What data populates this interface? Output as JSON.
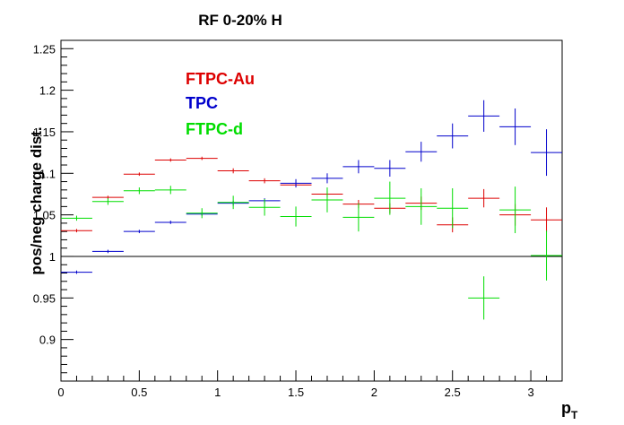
{
  "chart_data": {
    "type": "scatter",
    "title": "RF 0-20% H",
    "xlabel": "p",
    "xlabel_sub": "T",
    "ylabel": "pos/neg charge dist.",
    "xlim": [
      0,
      3.2
    ],
    "ylim": [
      0.85,
      1.26
    ],
    "x_ticks": [
      0,
      0.5,
      1,
      1.5,
      2,
      2.5,
      3
    ],
    "x_tick_labels": [
      "0",
      "0.5",
      "1",
      "1.5",
      "2",
      "2.5",
      "3"
    ],
    "y_ticks": [
      0.9,
      0.95,
      1,
      1.05,
      1.1,
      1.15,
      1.2,
      1.25
    ],
    "y_tick_labels": [
      "0.9",
      "0.95",
      "1",
      "1.05",
      "1.1",
      "1.15",
      "1.2",
      "1.25"
    ],
    "reference_line": 1.0,
    "legend_position": "top-left",
    "series": [
      {
        "name": "FTPC-Au",
        "color": "#dd0000",
        "points": [
          {
            "x": 0.1,
            "y": 1.031,
            "xerr": 0.1,
            "yerr": 0.002
          },
          {
            "x": 0.3,
            "y": 1.071,
            "xerr": 0.1,
            "yerr": 0.002
          },
          {
            "x": 0.5,
            "y": 1.099,
            "xerr": 0.1,
            "yerr": 0.002
          },
          {
            "x": 0.7,
            "y": 1.116,
            "xerr": 0.1,
            "yerr": 0.002
          },
          {
            "x": 0.9,
            "y": 1.118,
            "xerr": 0.1,
            "yerr": 0.002
          },
          {
            "x": 1.1,
            "y": 1.103,
            "xerr": 0.1,
            "yerr": 0.003
          },
          {
            "x": 1.3,
            "y": 1.091,
            "xerr": 0.1,
            "yerr": 0.003
          },
          {
            "x": 1.5,
            "y": 1.086,
            "xerr": 0.1,
            "yerr": 0.003
          },
          {
            "x": 1.7,
            "y": 1.075,
            "xerr": 0.1,
            "yerr": 0.004
          },
          {
            "x": 1.9,
            "y": 1.063,
            "xerr": 0.1,
            "yerr": 0.005
          },
          {
            "x": 2.1,
            "y": 1.058,
            "xerr": 0.1,
            "yerr": 0.006
          },
          {
            "x": 2.3,
            "y": 1.064,
            "xerr": 0.1,
            "yerr": 0.008
          },
          {
            "x": 2.5,
            "y": 1.038,
            "xerr": 0.1,
            "yerr": 0.009
          },
          {
            "x": 2.7,
            "y": 1.07,
            "xerr": 0.1,
            "yerr": 0.011
          },
          {
            "x": 2.9,
            "y": 1.05,
            "xerr": 0.1,
            "yerr": 0.013
          },
          {
            "x": 3.1,
            "y": 1.044,
            "xerr": 0.1,
            "yerr": 0.015
          }
        ]
      },
      {
        "name": "TPC",
        "color": "#0000cc",
        "points": [
          {
            "x": 0.1,
            "y": 0.981,
            "xerr": 0.1,
            "yerr": 0.002
          },
          {
            "x": 0.3,
            "y": 1.006,
            "xerr": 0.1,
            "yerr": 0.002
          },
          {
            "x": 0.5,
            "y": 1.03,
            "xerr": 0.1,
            "yerr": 0.002
          },
          {
            "x": 0.7,
            "y": 1.041,
            "xerr": 0.1,
            "yerr": 0.002
          },
          {
            "x": 0.9,
            "y": 1.051,
            "xerr": 0.1,
            "yerr": 0.002
          },
          {
            "x": 1.1,
            "y": 1.064,
            "xerr": 0.1,
            "yerr": 0.003
          },
          {
            "x": 1.3,
            "y": 1.067,
            "xerr": 0.1,
            "yerr": 0.003
          },
          {
            "x": 1.5,
            "y": 1.088,
            "xerr": 0.1,
            "yerr": 0.005
          },
          {
            "x": 1.7,
            "y": 1.094,
            "xerr": 0.1,
            "yerr": 0.006
          },
          {
            "x": 1.9,
            "y": 1.108,
            "xerr": 0.1,
            "yerr": 0.008
          },
          {
            "x": 2.1,
            "y": 1.106,
            "xerr": 0.1,
            "yerr": 0.01
          },
          {
            "x": 2.3,
            "y": 1.126,
            "xerr": 0.1,
            "yerr": 0.012
          },
          {
            "x": 2.5,
            "y": 1.145,
            "xerr": 0.1,
            "yerr": 0.015
          },
          {
            "x": 2.7,
            "y": 1.169,
            "xerr": 0.1,
            "yerr": 0.019
          },
          {
            "x": 2.9,
            "y": 1.156,
            "xerr": 0.1,
            "yerr": 0.022
          },
          {
            "x": 3.1,
            "y": 1.125,
            "xerr": 0.1,
            "yerr": 0.028
          }
        ]
      },
      {
        "name": "FTPC-d",
        "color": "#00dd00",
        "points": [
          {
            "x": 0.1,
            "y": 1.046,
            "xerr": 0.1,
            "yerr": 0.003
          },
          {
            "x": 0.3,
            "y": 1.066,
            "xerr": 0.1,
            "yerr": 0.004
          },
          {
            "x": 0.5,
            "y": 1.079,
            "xerr": 0.1,
            "yerr": 0.004
          },
          {
            "x": 0.7,
            "y": 1.08,
            "xerr": 0.1,
            "yerr": 0.005
          },
          {
            "x": 0.9,
            "y": 1.052,
            "xerr": 0.1,
            "yerr": 0.006
          },
          {
            "x": 1.1,
            "y": 1.065,
            "xerr": 0.1,
            "yerr": 0.008
          },
          {
            "x": 1.3,
            "y": 1.059,
            "xerr": 0.1,
            "yerr": 0.01
          },
          {
            "x": 1.5,
            "y": 1.048,
            "xerr": 0.1,
            "yerr": 0.012
          },
          {
            "x": 1.7,
            "y": 1.068,
            "xerr": 0.1,
            "yerr": 0.015
          },
          {
            "x": 1.9,
            "y": 1.047,
            "xerr": 0.1,
            "yerr": 0.017
          },
          {
            "x": 2.1,
            "y": 1.07,
            "xerr": 0.1,
            "yerr": 0.02
          },
          {
            "x": 2.3,
            "y": 1.06,
            "xerr": 0.1,
            "yerr": 0.022
          },
          {
            "x": 2.5,
            "y": 1.058,
            "xerr": 0.1,
            "yerr": 0.024
          },
          {
            "x": 2.7,
            "y": 0.95,
            "xerr": 0.1,
            "yerr": 0.026
          },
          {
            "x": 2.9,
            "y": 1.056,
            "xerr": 0.1,
            "yerr": 0.028
          },
          {
            "x": 3.1,
            "y": 1.001,
            "xerr": 0.1,
            "yerr": 0.03
          }
        ]
      }
    ]
  }
}
